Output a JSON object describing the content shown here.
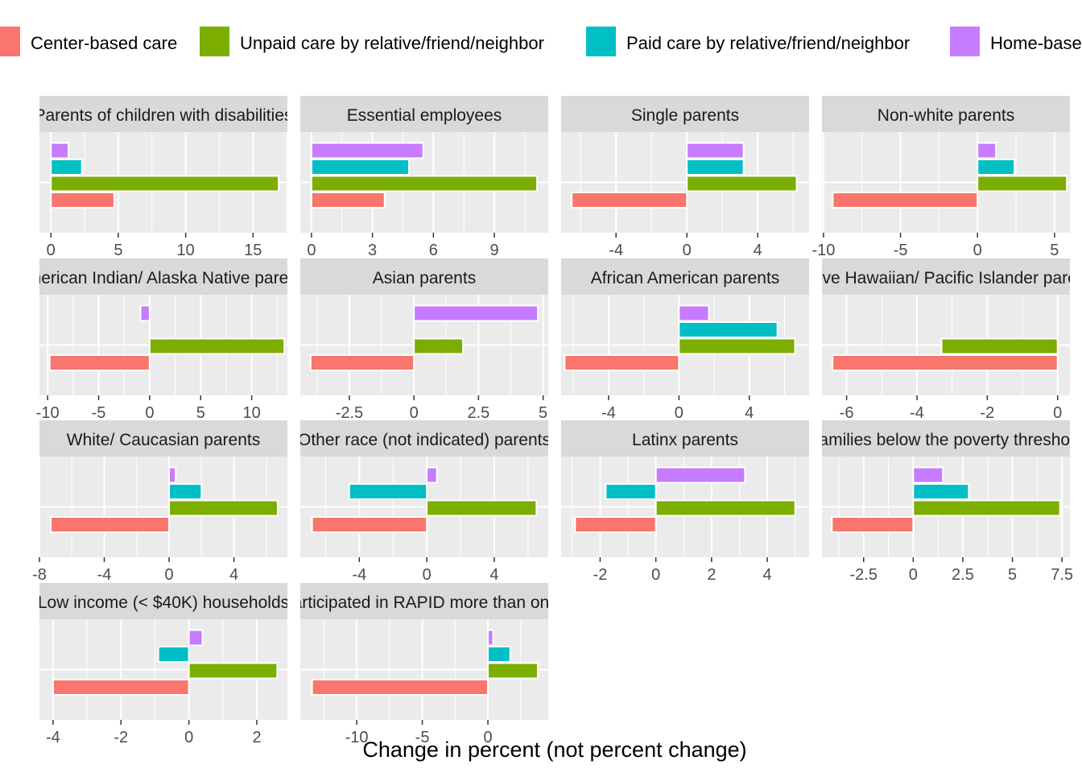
{
  "chart_data": {
    "type": "bar",
    "orientation": "horizontal",
    "layout": "facet-grid",
    "xlabel": "Change in percent (not percent change)",
    "legend_position": "top",
    "series": [
      {
        "name": "Center-based care",
        "color": "#F8766D"
      },
      {
        "name": "Unpaid care by relative/friend/neighbor",
        "color": "#7CAE00"
      },
      {
        "name": "Paid care by relative/friend/neighbor",
        "color": "#00BFC4"
      },
      {
        "name": "Home-based care",
        "color": "#C77CFF"
      }
    ],
    "facets": [
      {
        "title": "Parents of children with disabilities",
        "xlim": [
          -0.85,
          17.55
        ],
        "ticks": [
          0,
          5,
          10,
          15
        ],
        "values": [
          4.7,
          16.9,
          2.3,
          1.3
        ]
      },
      {
        "title": "Essential employees",
        "xlim": [
          -0.55,
          11.65
        ],
        "ticks": [
          0,
          3,
          6,
          9
        ],
        "values": [
          3.6,
          11.1,
          4.8,
          5.5
        ]
      },
      {
        "title": "Single parents",
        "xlim": [
          -7.1,
          6.9
        ],
        "ticks": [
          -4,
          0,
          4
        ],
        "values": [
          -6.5,
          6.2,
          3.2,
          3.2
        ]
      },
      {
        "title": "Non-white parents",
        "xlim": [
          -10.1,
          6.0
        ],
        "ticks": [
          -10,
          -5,
          0,
          5
        ],
        "values": [
          -9.4,
          5.8,
          2.4,
          1.2
        ]
      },
      {
        "title": "American Indian/ Alaska Native parents",
        "xlim": [
          -10.8,
          13.5
        ],
        "ticks": [
          -10,
          -5,
          0,
          5,
          10
        ],
        "values": [
          -9.8,
          13.2,
          null,
          -0.9
        ]
      },
      {
        "title": "Asian parents",
        "xlim": [
          -4.4,
          5.2
        ],
        "ticks": [
          -2.5,
          0.0,
          2.5,
          5.0
        ],
        "values": [
          -4.0,
          1.9,
          null,
          4.8
        ]
      },
      {
        "title": "African American parents",
        "xlim": [
          -6.7,
          7.4
        ],
        "ticks": [
          -4,
          0,
          4
        ],
        "values": [
          -6.5,
          6.6,
          5.6,
          1.7
        ]
      },
      {
        "title": "Native Hawaiian/ Pacific Islander parents",
        "xlim": [
          -6.7,
          0.35
        ],
        "ticks": [
          -6,
          -4,
          -2,
          0
        ],
        "values": [
          -6.4,
          -3.3,
          null,
          null
        ]
      },
      {
        "title": "White/ Caucasian parents",
        "xlim": [
          -8.0,
          7.3
        ],
        "ticks": [
          -8,
          -4,
          0,
          4
        ],
        "values": [
          -7.3,
          6.7,
          2.0,
          0.4
        ]
      },
      {
        "title": "Other race (not indicated) parents",
        "xlim": [
          -7.5,
          7.2
        ],
        "ticks": [
          -4,
          0,
          4
        ],
        "values": [
          -6.8,
          6.5,
          -4.6,
          0.6
        ]
      },
      {
        "title": "Latinx parents",
        "xlim": [
          -3.4,
          5.5
        ],
        "ticks": [
          -2,
          0,
          2,
          4
        ],
        "values": [
          -2.9,
          5.0,
          -1.8,
          3.2
        ]
      },
      {
        "title": "Families below the poverty threshold",
        "xlim": [
          -4.6,
          7.9
        ],
        "ticks": [
          -2.5,
          0.0,
          2.5,
          5.0,
          7.5
        ],
        "values": [
          -4.1,
          7.4,
          2.8,
          1.5
        ]
      },
      {
        "title": "Low income (< $40K) households",
        "xlim": [
          -4.4,
          2.9
        ],
        "ticks": [
          -4,
          -2,
          0,
          2
        ],
        "values": [
          -4.0,
          2.6,
          -0.9,
          0.4
        ]
      },
      {
        "title": "Participated in RAPID more than once",
        "xlim": [
          -14.3,
          4.6
        ],
        "ticks": [
          -10,
          -5,
          0
        ],
        "values": [
          -13.4,
          3.8,
          1.7,
          0.4
        ]
      }
    ]
  }
}
